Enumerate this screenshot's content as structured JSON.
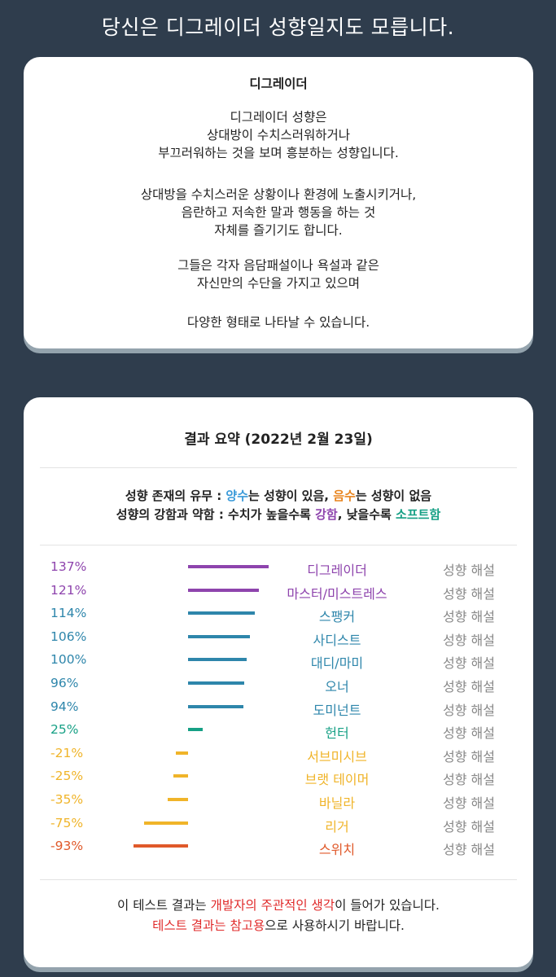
{
  "header": {
    "title": "당신은 디그레이더 성향일지도 모릅니다."
  },
  "intro": {
    "title": "디그레이더",
    "paragraphs": [
      [
        "디그레이더 성향은",
        "상대방이 수치스러워하거나",
        "부끄러워하는 것을 보며 흥분하는 성향입니다."
      ],
      [
        "상대방을 수치스러운 상황이나 환경에 노출시키거나,",
        "음란하고 저속한 말과 행동을 하는 것",
        "자체를 즐기기도 합니다."
      ],
      [
        "그들은 각자 음담패설이나 욕설과 같은",
        "자신만의 수단을 가지고 있으며"
      ],
      [
        "다양한 형태로 나타날 수 있습니다."
      ]
    ]
  },
  "summary": {
    "title": "결과 요약 (2022년 2월 23일)",
    "legend1": {
      "prefix": "성향 존재의 유무 : ",
      "pos_word": "양수",
      "mid": "는 성향이 있음, ",
      "neg_word": "음수",
      "suffix": "는 성향이 없음"
    },
    "legend2": {
      "prefix": "성향의 강함과 약함 : 수치가 높을수록 ",
      "strong_word": "강함",
      "mid": ", 낮을수록 ",
      "soft_word": "소프트함"
    },
    "link_label": "성향 해설",
    "colors": {
      "strong": "#8e44ad",
      "high": "#2e86ab",
      "mid": "#16a085",
      "low": "#f0b429",
      "lowest": "#e0592a"
    }
  },
  "chart_data": {
    "type": "bar",
    "categories": [
      "디그레이더",
      "마스터/미스트레스",
      "스팽커",
      "사디스트",
      "대디/마미",
      "오너",
      "도미넌트",
      "헌터",
      "서브미시브",
      "브랫 테이머",
      "바닐라",
      "리거",
      "스위치"
    ],
    "values": [
      137,
      121,
      114,
      106,
      100,
      96,
      94,
      25,
      -21,
      -25,
      -35,
      -75,
      -93
    ],
    "labels": [
      "137%",
      "121%",
      "114%",
      "106%",
      "100%",
      "96%",
      "94%",
      "25%",
      "-21%",
      "-25%",
      "-35%",
      "-75%",
      "-93%"
    ],
    "colors": [
      "#8e44ad",
      "#8e44ad",
      "#2e86ab",
      "#2e86ab",
      "#2e86ab",
      "#2e86ab",
      "#2e86ab",
      "#16a085",
      "#f0b429",
      "#f0b429",
      "#f0b429",
      "#f0b429",
      "#e0592a"
    ]
  },
  "footer": {
    "line1": {
      "a": "이 테스트 결과는 ",
      "b": "개발자의 주관적인 생각",
      "c": "이 들어가 있습니다."
    },
    "line2": {
      "a": "테스트 결과는 참고용",
      "b": "으로 사용하시기 바랍니다."
    }
  }
}
